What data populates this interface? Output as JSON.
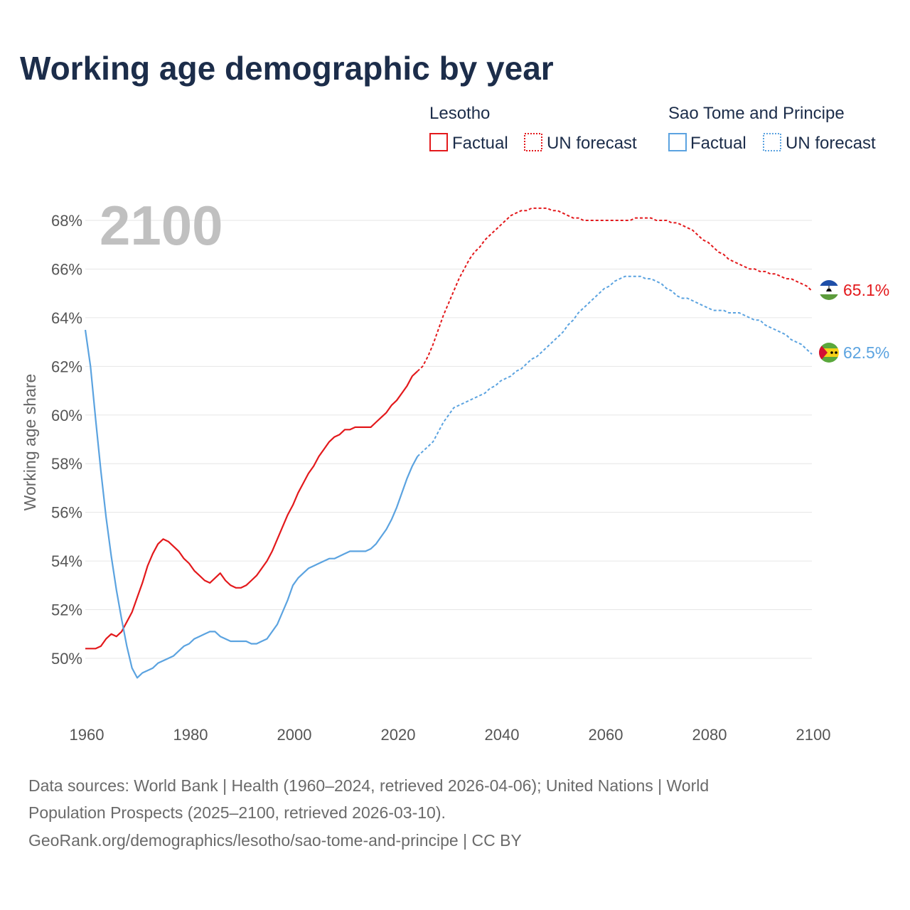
{
  "title": "Working age demographic by year",
  "year_label": "2100",
  "legend": {
    "groups": [
      {
        "name": "Lesotho",
        "color": "#e3191c",
        "factual": "Factual",
        "forecast": "UN forecast"
      },
      {
        "name": "Sao Tome and Principe",
        "color": "#5ba3e0",
        "factual": "Factual",
        "forecast": "UN forecast"
      }
    ]
  },
  "source": {
    "line1": "Data sources: World Bank | Health (1960–2024, retrieved 2026-04-06); United Nations | World",
    "line2": "Population Prospects (2025–2100, retrieved 2026-03-10).",
    "line3": "GeoRank.org/demographics/lesotho/sao-tome-and-principe | CC BY"
  },
  "end_labels": [
    {
      "series": "Lesotho",
      "text": "65.1%",
      "color": "#e3191c",
      "flag_icon": "lesotho-flag-icon"
    },
    {
      "series": "Sao Tome and Principe",
      "text": "62.5%",
      "color": "#5ba3e0",
      "flag_icon": "sao-tome-flag-icon"
    }
  ],
  "chart_data": {
    "type": "line",
    "title": "Working age demographic by year",
    "xlabel": "",
    "ylabel": "Working age share",
    "xlim": [
      1960,
      2100
    ],
    "ylim": [
      48,
      69
    ],
    "x_ticks": [
      1960,
      1980,
      2000,
      2020,
      2040,
      2060,
      2080,
      2100
    ],
    "y_ticks": [
      {
        "value": 50,
        "label": "50%"
      },
      {
        "value": 52,
        "label": "52%"
      },
      {
        "value": 54,
        "label": "54%"
      },
      {
        "value": 56,
        "label": "56%"
      },
      {
        "value": 58,
        "label": "58%"
      },
      {
        "value": 60,
        "label": "60%"
      },
      {
        "value": 62,
        "label": "62%"
      },
      {
        "value": 64,
        "label": "64%"
      },
      {
        "value": 66,
        "label": "66%"
      },
      {
        "value": 68,
        "label": "68%"
      }
    ],
    "grid": true,
    "legend_position": "top-right",
    "series": [
      {
        "name": "Lesotho",
        "color": "#e3191c",
        "factual": [
          [
            1960,
            50.4
          ],
          [
            1962,
            50.4
          ],
          [
            1963,
            50.5
          ],
          [
            1964,
            50.8
          ],
          [
            1965,
            51.0
          ],
          [
            1966,
            50.9
          ],
          [
            1967,
            51.1
          ],
          [
            1968,
            51.5
          ],
          [
            1969,
            51.9
          ],
          [
            1970,
            52.5
          ],
          [
            1971,
            53.1
          ],
          [
            1972,
            53.8
          ],
          [
            1973,
            54.3
          ],
          [
            1974,
            54.7
          ],
          [
            1975,
            54.9
          ],
          [
            1976,
            54.8
          ],
          [
            1977,
            54.6
          ],
          [
            1978,
            54.4
          ],
          [
            1979,
            54.1
          ],
          [
            1980,
            53.9
          ],
          [
            1981,
            53.6
          ],
          [
            1982,
            53.4
          ],
          [
            1983,
            53.2
          ],
          [
            1984,
            53.1
          ],
          [
            1985,
            53.3
          ],
          [
            1986,
            53.5
          ],
          [
            1987,
            53.2
          ],
          [
            1988,
            53.0
          ],
          [
            1989,
            52.9
          ],
          [
            1990,
            52.9
          ],
          [
            1991,
            53.0
          ],
          [
            1992,
            53.2
          ],
          [
            1993,
            53.4
          ],
          [
            1994,
            53.7
          ],
          [
            1995,
            54.0
          ],
          [
            1996,
            54.4
          ],
          [
            1997,
            54.9
          ],
          [
            1998,
            55.4
          ],
          [
            1999,
            55.9
          ],
          [
            2000,
            56.3
          ],
          [
            2001,
            56.8
          ],
          [
            2002,
            57.2
          ],
          [
            2003,
            57.6
          ],
          [
            2004,
            57.9
          ],
          [
            2005,
            58.3
          ],
          [
            2006,
            58.6
          ],
          [
            2007,
            58.9
          ],
          [
            2008,
            59.1
          ],
          [
            2009,
            59.2
          ],
          [
            2010,
            59.4
          ],
          [
            2011,
            59.4
          ],
          [
            2012,
            59.5
          ],
          [
            2013,
            59.5
          ],
          [
            2014,
            59.5
          ],
          [
            2015,
            59.5
          ],
          [
            2016,
            59.7
          ],
          [
            2017,
            59.9
          ],
          [
            2018,
            60.1
          ],
          [
            2019,
            60.4
          ],
          [
            2020,
            60.6
          ],
          [
            2021,
            60.9
          ],
          [
            2022,
            61.2
          ],
          [
            2023,
            61.6
          ],
          [
            2024,
            61.8
          ]
        ],
        "forecast": [
          [
            2024,
            61.8
          ],
          [
            2025,
            62.0
          ],
          [
            2026,
            62.4
          ],
          [
            2027,
            62.9
          ],
          [
            2028,
            63.5
          ],
          [
            2029,
            64.1
          ],
          [
            2030,
            64.6
          ],
          [
            2031,
            65.1
          ],
          [
            2032,
            65.6
          ],
          [
            2033,
            66.0
          ],
          [
            2034,
            66.4
          ],
          [
            2035,
            66.7
          ],
          [
            2036,
            66.9
          ],
          [
            2037,
            67.2
          ],
          [
            2038,
            67.4
          ],
          [
            2039,
            67.6
          ],
          [
            2040,
            67.8
          ],
          [
            2041,
            68.0
          ],
          [
            2042,
            68.2
          ],
          [
            2043,
            68.3
          ],
          [
            2044,
            68.4
          ],
          [
            2045,
            68.4
          ],
          [
            2046,
            68.5
          ],
          [
            2047,
            68.5
          ],
          [
            2048,
            68.5
          ],
          [
            2049,
            68.5
          ],
          [
            2050,
            68.4
          ],
          [
            2051,
            68.4
          ],
          [
            2052,
            68.3
          ],
          [
            2053,
            68.2
          ],
          [
            2054,
            68.1
          ],
          [
            2055,
            68.1
          ],
          [
            2056,
            68.0
          ],
          [
            2057,
            68.0
          ],
          [
            2058,
            68.0
          ],
          [
            2059,
            68.0
          ],
          [
            2060,
            68.0
          ],
          [
            2061,
            68.0
          ],
          [
            2062,
            68.0
          ],
          [
            2063,
            68.0
          ],
          [
            2064,
            68.0
          ],
          [
            2065,
            68.0
          ],
          [
            2066,
            68.1
          ],
          [
            2067,
            68.1
          ],
          [
            2068,
            68.1
          ],
          [
            2069,
            68.1
          ],
          [
            2070,
            68.0
          ],
          [
            2071,
            68.0
          ],
          [
            2072,
            68.0
          ],
          [
            2073,
            67.9
          ],
          [
            2074,
            67.9
          ],
          [
            2075,
            67.8
          ],
          [
            2076,
            67.7
          ],
          [
            2077,
            67.6
          ],
          [
            2078,
            67.4
          ],
          [
            2079,
            67.2
          ],
          [
            2080,
            67.1
          ],
          [
            2081,
            66.9
          ],
          [
            2082,
            66.7
          ],
          [
            2083,
            66.6
          ],
          [
            2084,
            66.4
          ],
          [
            2085,
            66.3
          ],
          [
            2086,
            66.2
          ],
          [
            2087,
            66.1
          ],
          [
            2088,
            66.0
          ],
          [
            2089,
            66.0
          ],
          [
            2090,
            65.9
          ],
          [
            2091,
            65.9
          ],
          [
            2092,
            65.8
          ],
          [
            2093,
            65.8
          ],
          [
            2094,
            65.7
          ],
          [
            2095,
            65.6
          ],
          [
            2096,
            65.6
          ],
          [
            2097,
            65.5
          ],
          [
            2098,
            65.4
          ],
          [
            2099,
            65.3
          ],
          [
            2100,
            65.1
          ]
        ]
      },
      {
        "name": "Sao Tome and Principe",
        "color": "#5ba3e0",
        "factual": [
          [
            1960,
            63.5
          ],
          [
            1961,
            62.0
          ],
          [
            1962,
            59.8
          ],
          [
            1963,
            57.7
          ],
          [
            1964,
            55.8
          ],
          [
            1965,
            54.2
          ],
          [
            1966,
            52.8
          ],
          [
            1967,
            51.6
          ],
          [
            1968,
            50.5
          ],
          [
            1969,
            49.6
          ],
          [
            1970,
            49.2
          ],
          [
            1971,
            49.4
          ],
          [
            1972,
            49.5
          ],
          [
            1973,
            49.6
          ],
          [
            1974,
            49.8
          ],
          [
            1975,
            49.9
          ],
          [
            1976,
            50.0
          ],
          [
            1977,
            50.1
          ],
          [
            1978,
            50.3
          ],
          [
            1979,
            50.5
          ],
          [
            1980,
            50.6
          ],
          [
            1981,
            50.8
          ],
          [
            1982,
            50.9
          ],
          [
            1983,
            51.0
          ],
          [
            1984,
            51.1
          ],
          [
            1985,
            51.1
          ],
          [
            1986,
            50.9
          ],
          [
            1987,
            50.8
          ],
          [
            1988,
            50.7
          ],
          [
            1989,
            50.7
          ],
          [
            1990,
            50.7
          ],
          [
            1991,
            50.7
          ],
          [
            1992,
            50.6
          ],
          [
            1993,
            50.6
          ],
          [
            1994,
            50.7
          ],
          [
            1995,
            50.8
          ],
          [
            1996,
            51.1
          ],
          [
            1997,
            51.4
          ],
          [
            1998,
            51.9
          ],
          [
            1999,
            52.4
          ],
          [
            2000,
            53.0
          ],
          [
            2001,
            53.3
          ],
          [
            2002,
            53.5
          ],
          [
            2003,
            53.7
          ],
          [
            2004,
            53.8
          ],
          [
            2005,
            53.9
          ],
          [
            2006,
            54.0
          ],
          [
            2007,
            54.1
          ],
          [
            2008,
            54.1
          ],
          [
            2009,
            54.2
          ],
          [
            2010,
            54.3
          ],
          [
            2011,
            54.4
          ],
          [
            2012,
            54.4
          ],
          [
            2013,
            54.4
          ],
          [
            2014,
            54.4
          ],
          [
            2015,
            54.5
          ],
          [
            2016,
            54.7
          ],
          [
            2017,
            55.0
          ],
          [
            2018,
            55.3
          ],
          [
            2019,
            55.7
          ],
          [
            2020,
            56.2
          ],
          [
            2021,
            56.8
          ],
          [
            2022,
            57.4
          ],
          [
            2023,
            57.9
          ],
          [
            2024,
            58.3
          ]
        ],
        "forecast": [
          [
            2024,
            58.3
          ],
          [
            2025,
            58.5
          ],
          [
            2026,
            58.7
          ],
          [
            2027,
            58.9
          ],
          [
            2028,
            59.3
          ],
          [
            2029,
            59.7
          ],
          [
            2030,
            60.0
          ],
          [
            2031,
            60.3
          ],
          [
            2032,
            60.4
          ],
          [
            2033,
            60.5
          ],
          [
            2034,
            60.6
          ],
          [
            2035,
            60.7
          ],
          [
            2036,
            60.8
          ],
          [
            2037,
            60.9
          ],
          [
            2038,
            61.1
          ],
          [
            2039,
            61.2
          ],
          [
            2040,
            61.4
          ],
          [
            2041,
            61.5
          ],
          [
            2042,
            61.6
          ],
          [
            2043,
            61.8
          ],
          [
            2044,
            61.9
          ],
          [
            2045,
            62.1
          ],
          [
            2046,
            62.3
          ],
          [
            2047,
            62.4
          ],
          [
            2048,
            62.6
          ],
          [
            2049,
            62.8
          ],
          [
            2050,
            63.0
          ],
          [
            2051,
            63.2
          ],
          [
            2052,
            63.4
          ],
          [
            2053,
            63.7
          ],
          [
            2054,
            63.9
          ],
          [
            2055,
            64.2
          ],
          [
            2056,
            64.4
          ],
          [
            2057,
            64.6
          ],
          [
            2058,
            64.8
          ],
          [
            2059,
            65.0
          ],
          [
            2060,
            65.2
          ],
          [
            2061,
            65.3
          ],
          [
            2062,
            65.5
          ],
          [
            2063,
            65.6
          ],
          [
            2064,
            65.7
          ],
          [
            2065,
            65.7
          ],
          [
            2066,
            65.7
          ],
          [
            2067,
            65.7
          ],
          [
            2068,
            65.6
          ],
          [
            2069,
            65.6
          ],
          [
            2070,
            65.5
          ],
          [
            2071,
            65.4
          ],
          [
            2072,
            65.2
          ],
          [
            2073,
            65.1
          ],
          [
            2074,
            64.9
          ],
          [
            2075,
            64.8
          ],
          [
            2076,
            64.8
          ],
          [
            2077,
            64.7
          ],
          [
            2078,
            64.6
          ],
          [
            2079,
            64.5
          ],
          [
            2080,
            64.4
          ],
          [
            2081,
            64.3
          ],
          [
            2082,
            64.3
          ],
          [
            2083,
            64.3
          ],
          [
            2084,
            64.2
          ],
          [
            2085,
            64.2
          ],
          [
            2086,
            64.2
          ],
          [
            2087,
            64.1
          ],
          [
            2088,
            64.0
          ],
          [
            2089,
            63.9
          ],
          [
            2090,
            63.9
          ],
          [
            2091,
            63.7
          ],
          [
            2092,
            63.6
          ],
          [
            2093,
            63.5
          ],
          [
            2094,
            63.4
          ],
          [
            2095,
            63.3
          ],
          [
            2096,
            63.1
          ],
          [
            2097,
            63.0
          ],
          [
            2098,
            62.9
          ],
          [
            2099,
            62.7
          ],
          [
            2100,
            62.5
          ]
        ]
      }
    ]
  }
}
